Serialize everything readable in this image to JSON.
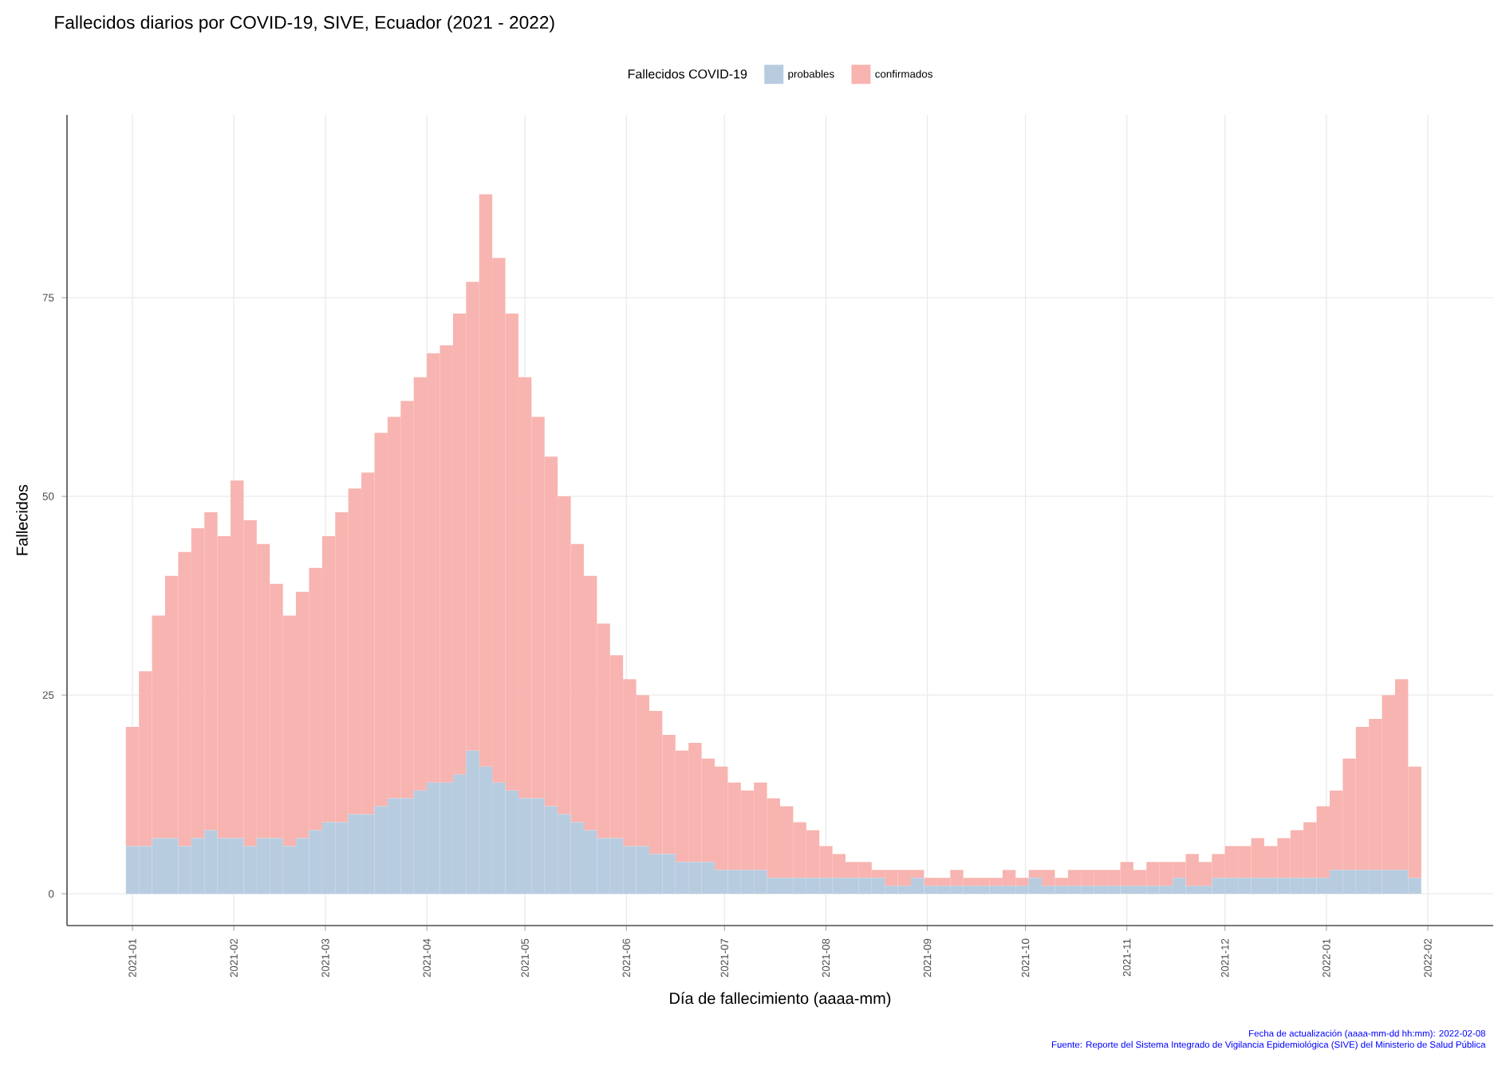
{
  "chart_data": {
    "type": "bar",
    "stacked": true,
    "title": "Fallecidos diarios por COVID-19, SIVE, Ecuador (2021 - 2022)",
    "xlabel": "Día de fallecimiento (aaaa-mm)",
    "ylabel": "Fallecidos",
    "legend_title": "Fallecidos COVID-19",
    "legend": "top",
    "grid": true,
    "annotations": [
      "Fecha de actualización (aaaa-mm-dd hh:mm): 2022-02-08",
      "Fuente: Reporte del Sistema Integrado de Vigilancia Epidemiológica (SIVE) del Ministerio de Salud Pública"
    ],
    "xlim": [
      "2020-12-12",
      "2022-02-21"
    ],
    "xticks": [
      {
        "value": "2021-01-01",
        "label": "2021-01"
      },
      {
        "value": "2021-02-01",
        "label": "2021-02"
      },
      {
        "value": "2021-03-01",
        "label": "2021-03"
      },
      {
        "value": "2021-04-01",
        "label": "2021-04"
      },
      {
        "value": "2021-05-01",
        "label": "2021-05"
      },
      {
        "value": "2021-06-01",
        "label": "2021-06"
      },
      {
        "value": "2021-07-01",
        "label": "2021-07"
      },
      {
        "value": "2021-08-01",
        "label": "2021-08"
      },
      {
        "value": "2021-09-01",
        "label": "2021-09"
      },
      {
        "value": "2021-10-01",
        "label": "2021-10"
      },
      {
        "value": "2021-11-01",
        "label": "2021-11"
      },
      {
        "value": "2021-12-01",
        "label": "2021-12"
      },
      {
        "value": "2022-01-01",
        "label": "2022-01"
      },
      {
        "value": "2022-02-01",
        "label": "2022-02"
      }
    ],
    "ylim": [
      -4,
      98
    ],
    "yticks": [
      0,
      25,
      50,
      75
    ],
    "x": [
      "2021-01-01",
      "2021-01-05",
      "2021-01-09",
      "2021-01-13",
      "2021-01-17",
      "2021-01-21",
      "2021-01-25",
      "2021-01-29",
      "2021-02-02",
      "2021-02-06",
      "2021-02-10",
      "2021-02-14",
      "2021-02-18",
      "2021-02-22",
      "2021-02-26",
      "2021-03-02",
      "2021-03-06",
      "2021-03-10",
      "2021-03-14",
      "2021-03-18",
      "2021-03-22",
      "2021-03-26",
      "2021-03-30",
      "2021-04-03",
      "2021-04-07",
      "2021-04-11",
      "2021-04-15",
      "2021-04-19",
      "2021-04-23",
      "2021-04-27",
      "2021-05-01",
      "2021-05-05",
      "2021-05-09",
      "2021-05-13",
      "2021-05-17",
      "2021-05-21",
      "2021-05-25",
      "2021-05-29",
      "2021-06-02",
      "2021-06-06",
      "2021-06-10",
      "2021-06-14",
      "2021-06-18",
      "2021-06-22",
      "2021-06-26",
      "2021-06-30",
      "2021-07-04",
      "2021-07-08",
      "2021-07-12",
      "2021-07-16",
      "2021-07-20",
      "2021-07-24",
      "2021-07-28",
      "2021-08-01",
      "2021-08-05",
      "2021-08-09",
      "2021-08-13",
      "2021-08-17",
      "2021-08-21",
      "2021-08-25",
      "2021-08-29",
      "2021-09-02",
      "2021-09-06",
      "2021-09-10",
      "2021-09-14",
      "2021-09-18",
      "2021-09-22",
      "2021-09-26",
      "2021-09-30",
      "2021-10-04",
      "2021-10-08",
      "2021-10-12",
      "2021-10-16",
      "2021-10-20",
      "2021-10-24",
      "2021-10-28",
      "2021-11-01",
      "2021-11-05",
      "2021-11-09",
      "2021-11-13",
      "2021-11-17",
      "2021-11-21",
      "2021-11-25",
      "2021-11-29",
      "2021-12-03",
      "2021-12-07",
      "2021-12-11",
      "2021-12-15",
      "2021-12-19",
      "2021-12-23",
      "2021-12-27",
      "2021-12-31",
      "2022-01-04",
      "2022-01-08",
      "2022-01-12",
      "2022-01-16",
      "2022-01-20",
      "2022-01-24",
      "2022-01-28"
    ],
    "series": [
      {
        "name": "probables",
        "color": "#b8cce0",
        "values": [
          6,
          6,
          7,
          7,
          6,
          7,
          8,
          7,
          7,
          6,
          7,
          7,
          6,
          7,
          8,
          9,
          9,
          10,
          10,
          11,
          12,
          12,
          13,
          14,
          14,
          15,
          18,
          16,
          14,
          13,
          12,
          12,
          11,
          10,
          9,
          8,
          7,
          7,
          6,
          6,
          5,
          5,
          4,
          4,
          4,
          3,
          3,
          3,
          3,
          2,
          2,
          2,
          2,
          2,
          2,
          2,
          2,
          2,
          1,
          1,
          2,
          1,
          1,
          1,
          1,
          1,
          1,
          1,
          1,
          2,
          1,
          1,
          1,
          1,
          1,
          1,
          1,
          1,
          1,
          1,
          2,
          1,
          1,
          2,
          2,
          2,
          2,
          2,
          2,
          2,
          2,
          2,
          3,
          3,
          3,
          3,
          3,
          3,
          2
        ]
      },
      {
        "name": "confirmados",
        "color": "#f8b4b0",
        "values": [
          15,
          22,
          28,
          33,
          37,
          39,
          40,
          38,
          45,
          41,
          37,
          32,
          29,
          31,
          33,
          36,
          39,
          41,
          43,
          47,
          48,
          50,
          52,
          54,
          55,
          58,
          59,
          72,
          66,
          60,
          53,
          48,
          44,
          40,
          35,
          32,
          27,
          23,
          21,
          19,
          18,
          15,
          14,
          15,
          13,
          13,
          11,
          10,
          11,
          10,
          9,
          7,
          6,
          4,
          3,
          2,
          2,
          1,
          2,
          2,
          1,
          1,
          1,
          2,
          1,
          1,
          1,
          2,
          1,
          1,
          2,
          1,
          2,
          2,
          2,
          2,
          3,
          2,
          3,
          3,
          2,
          4,
          3,
          3,
          4,
          4,
          5,
          4,
          5,
          6,
          7,
          9,
          10,
          14,
          18,
          19,
          22,
          24,
          14
        ]
      }
    ]
  }
}
